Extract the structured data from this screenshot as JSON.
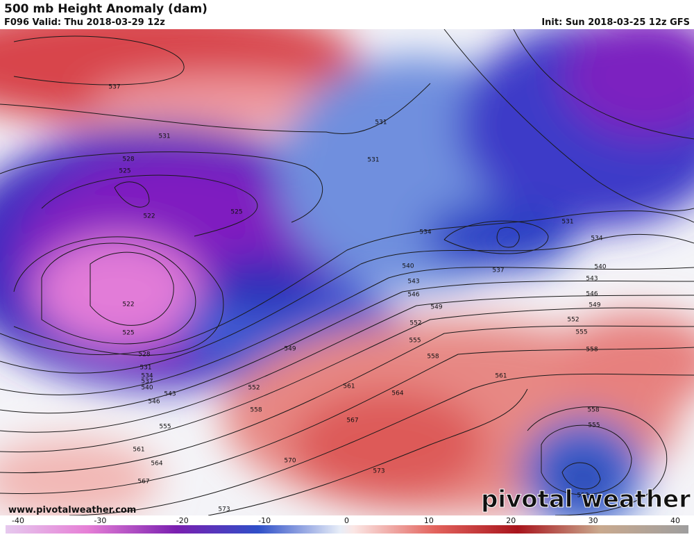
{
  "header": {
    "title": "500 mb Height Anomaly (dam)",
    "valid": "F096 Valid: Thu 2018-03-29 12z",
    "init": "Init: Sun 2018-03-25 12z GFS"
  },
  "contour_labels": [
    "537",
    "531",
    "528",
    "525",
    "522",
    "525",
    "522",
    "525",
    "528",
    "531",
    "534",
    "537",
    "540",
    "543",
    "546",
    "549",
    "552",
    "555",
    "558",
    "561",
    "564",
    "567",
    "570",
    "573",
    "531",
    "531",
    "534",
    "537",
    "540",
    "543",
    "546",
    "549",
    "552",
    "555",
    "558",
    "561",
    "564",
    "567",
    "573",
    "531",
    "534",
    "540",
    "543",
    "546",
    "549",
    "552",
    "555",
    "558",
    "561",
    "558",
    "555",
    "552"
  ],
  "colorbar": {
    "ticks": [
      -40,
      -30,
      -20,
      -10,
      0,
      10,
      20,
      30,
      40
    ]
  },
  "footer": {
    "website": "www.pivotalweather.com",
    "logo": "pivotal weather"
  }
}
